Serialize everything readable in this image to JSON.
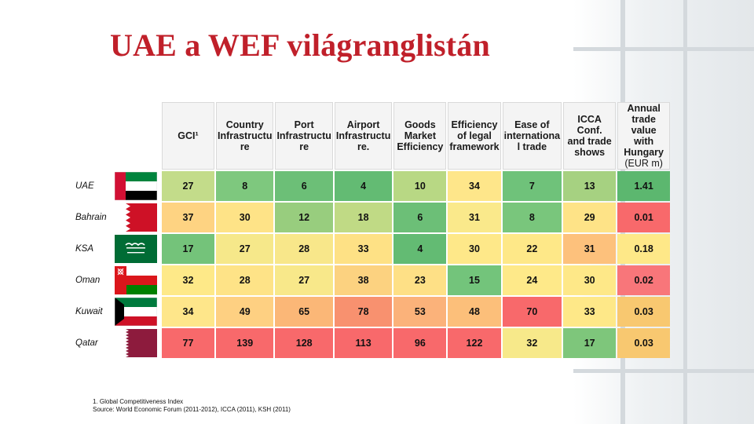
{
  "title": "UAE a WEF világranglistán",
  "headers": [
    "GCI¹",
    "Country Infrastructure",
    "Port Infrastructure",
    "Airport Infrastructure.",
    "Goods Market Efficiency",
    "Efficiency of legal framework",
    "Ease of international trade",
    "ICCA Conf. and trade shows",
    "Annual trade value with Hungary",
    "(EUR m)"
  ],
  "header_lines": [
    [
      "GCI¹"
    ],
    [
      "Country",
      "Infrastructu",
      "re"
    ],
    [
      "Port",
      "Infrastructu",
      "re"
    ],
    [
      "Airport",
      "Infrastructu",
      "re."
    ],
    [
      "Goods",
      "Market",
      "Efficiency"
    ],
    [
      "Efficiency",
      "of legal",
      "framework"
    ],
    [
      "Ease of",
      "internationa",
      "l trade"
    ],
    [
      "ICCA Conf.",
      "and trade",
      "shows"
    ],
    [
      "Annual",
      "trade value",
      "with",
      "Hungary"
    ]
  ],
  "header_unit": "(EUR m)",
  "rows": [
    {
      "country": "UAE",
      "flag": "uae-flag",
      "values": [
        "27",
        "8",
        "6",
        "4",
        "10",
        "34",
        "7",
        "13",
        "1.41"
      ],
      "colors": [
        "#c3dc8a",
        "#7ec87e",
        "#6cbf77",
        "#63bb73",
        "#b8d884",
        "#fee68a",
        "#6fc27a",
        "#a6d181",
        "#5cb76f"
      ]
    },
    {
      "country": "Bahrain",
      "flag": "bahrain-flag",
      "values": [
        "37",
        "30",
        "12",
        "18",
        "6",
        "31",
        "8",
        "29",
        "0.01"
      ],
      "colors": [
        "#fed382",
        "#fee387",
        "#98cd7e",
        "#c0da85",
        "#6cbf77",
        "#fae98b",
        "#79c67c",
        "#fee387",
        "#f8696b"
      ]
    },
    {
      "country": "KSA",
      "flag": "ksa-flag",
      "values": [
        "17",
        "27",
        "28",
        "33",
        "4",
        "30",
        "22",
        "31",
        "0.18"
      ],
      "colors": [
        "#74c37a",
        "#f6e88a",
        "#f8e78a",
        "#fee185",
        "#63bb73",
        "#fee889",
        "#fee888",
        "#fdc17c",
        "#fee888"
      ]
    },
    {
      "country": "Oman",
      "flag": "oman-flag",
      "values": [
        "32",
        "28",
        "27",
        "38",
        "23",
        "15",
        "24",
        "30",
        "0.02"
      ],
      "colors": [
        "#fee988",
        "#fee387",
        "#f8e88a",
        "#fcd280",
        "#fee086",
        "#73c47b",
        "#fee989",
        "#fee888",
        "#f8767a"
      ]
    },
    {
      "country": "Kuwait",
      "flag": "kuwait-flag",
      "values": [
        "34",
        "49",
        "65",
        "78",
        "53",
        "48",
        "70",
        "33",
        "0.03"
      ],
      "colors": [
        "#fee68a",
        "#fed082",
        "#fbb777",
        "#f8916f",
        "#fbb27a",
        "#fcbf7a",
        "#f8696b",
        "#fee888",
        "#f8c870"
      ]
    },
    {
      "country": "Qatar",
      "flag": "qatar-flag",
      "values": [
        "77",
        "139",
        "128",
        "113",
        "96",
        "122",
        "32",
        "17",
        "0.03"
      ],
      "colors": [
        "#f8696b",
        "#f8696b",
        "#f8696b",
        "#f8696b",
        "#f8696b",
        "#f8696b",
        "#f7e98a",
        "#7ec67b",
        "#f8c870"
      ]
    }
  ],
  "footnote_1": "1. Global Competitiveness Index",
  "footnote_2": "Source: World Economic Forum (2011-2012), ICCA (2011), KSH (2011)"
}
